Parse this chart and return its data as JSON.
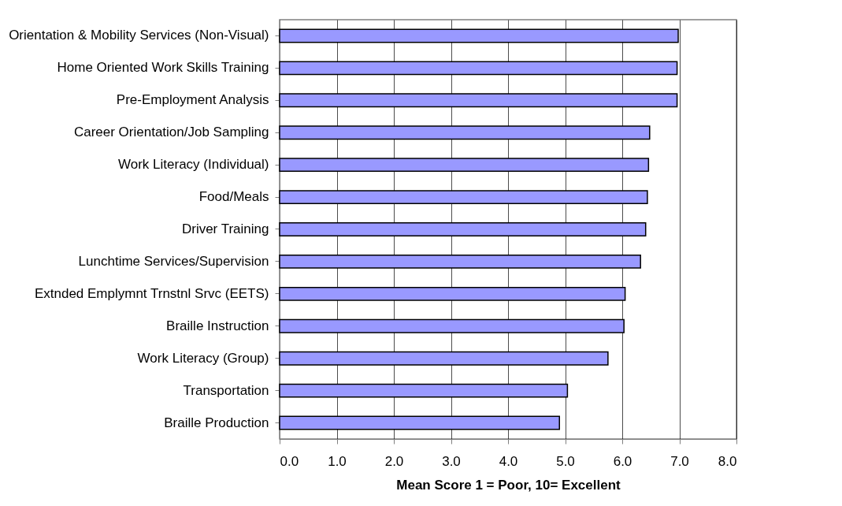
{
  "chart_data": {
    "type": "bar",
    "orientation": "horizontal",
    "xlabel": "Mean Score  1 = Poor, 10= Excellent",
    "categories": [
      "Orientation & Mobility Services (Non-Visual)",
      "Home Oriented Work Skills Training",
      "Pre-Employment Analysis",
      "Career Orientation/Job Sampling",
      "Work Literacy (Individual)",
      "Food/Meals",
      "Driver Training",
      "Lunchtime Services/Supervision",
      "Extnded Emplymnt Trnstnl Srvc (EETS)",
      "Braille Instruction",
      "Work Literacy (Group)",
      "Transportation",
      "Braille Production"
    ],
    "values": [
      6.98,
      6.96,
      6.96,
      6.48,
      6.46,
      6.44,
      6.41,
      6.32,
      6.05,
      6.03,
      5.75,
      5.04,
      4.9
    ],
    "color": "#9999ff",
    "xlim": [
      0,
      8
    ],
    "xticks": [
      {
        "value": 0,
        "label": "0.0"
      },
      {
        "value": 1,
        "label": "1.0"
      },
      {
        "value": 2,
        "label": "2.0"
      },
      {
        "value": 3,
        "label": "3.0"
      },
      {
        "value": 4,
        "label": "4.0"
      },
      {
        "value": 5,
        "label": "5.0"
      },
      {
        "value": 6,
        "label": "6.0"
      },
      {
        "value": 7,
        "label": "7.0"
      },
      {
        "value": 8,
        "label": "8.0"
      }
    ],
    "grid": "x"
  }
}
